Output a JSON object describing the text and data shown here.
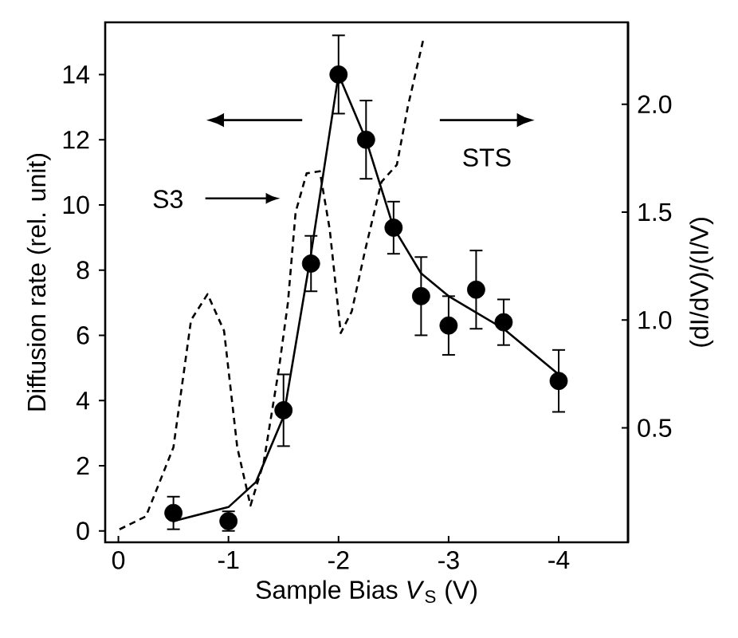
{
  "chart_data": {
    "type": "scatter",
    "xlabel": "Sample Bias *V*$_{S}$ (V)",
    "ylabel": "Diffusion rate (rel. unit)",
    "y2label": "(dI/dV)/(I/V)",
    "xlim": [
      0.12,
      -4.63
    ],
    "xticks": [
      0,
      -1,
      -2,
      -3,
      -4
    ],
    "ylim": [
      -0.35,
      15.6
    ],
    "yticks": [
      0,
      2,
      4,
      6,
      8,
      10,
      12,
      14
    ],
    "y2lim": [
      -0.03,
      2.38
    ],
    "y2ticks": [
      {
        "value": 0.5,
        "label": "0.5"
      },
      {
        "value": 1.0,
        "label": "1.0"
      },
      {
        "value": 1.5,
        "label": "1.5"
      },
      {
        "value": 2.0,
        "label": "2.0"
      }
    ],
    "annotations": [
      "S3",
      "STS"
    ],
    "marker": "circle",
    "series": [
      {
        "type": "line",
        "color": "#000000",
        "line_style": "dashed",
        "marker": "none",
        "axis": "y2",
        "x": [
          -0.01,
          -0.25,
          -0.5,
          -0.66,
          -0.81,
          -0.96,
          -1.08,
          -1.2,
          -1.32,
          -1.46,
          -1.54,
          -1.61,
          -1.71,
          -1.83,
          -1.92,
          -2.02,
          -2.12,
          -2.24,
          -2.39,
          -2.53,
          -2.63,
          -2.77
        ],
        "values": [
          0.03,
          0.09,
          0.41,
          1.0,
          1.12,
          0.95,
          0.41,
          0.14,
          0.34,
          0.78,
          1.08,
          1.5,
          1.68,
          1.69,
          1.42,
          0.94,
          1.04,
          1.32,
          1.64,
          1.72,
          1.99,
          2.3
        ]
      },
      {
        "type": "line",
        "color": "#000000",
        "line_style": "solid",
        "marker": "none",
        "x": [
          -0.5,
          -1.0,
          -1.25,
          -1.5,
          -1.75,
          -2.0,
          -2.25,
          -2.5,
          -2.75,
          -3.0,
          -3.25,
          -3.5,
          -4.0
        ],
        "values": [
          0.3,
          0.73,
          1.5,
          3.5,
          8.5,
          14.0,
          12.0,
          9.3,
          7.9,
          7.2,
          6.7,
          6.2,
          4.8
        ]
      },
      {
        "color": "#000000",
        "x": [
          -0.5,
          -1.0,
          -1.5,
          -1.75,
          -2.0,
          -2.25,
          -2.5,
          -2.75,
          -3.0,
          -3.25,
          -3.5,
          -4.0
        ],
        "values": [
          0.55,
          0.3,
          3.7,
          8.2,
          14.0,
          12.0,
          9.3,
          7.2,
          6.3,
          7.4,
          6.4,
          4.6
        ],
        "errors": [
          0.5,
          0.3,
          1.1,
          0.85,
          1.2,
          1.2,
          0.8,
          1.2,
          0.9,
          1.2,
          0.7,
          0.95
        ]
      }
    ]
  }
}
